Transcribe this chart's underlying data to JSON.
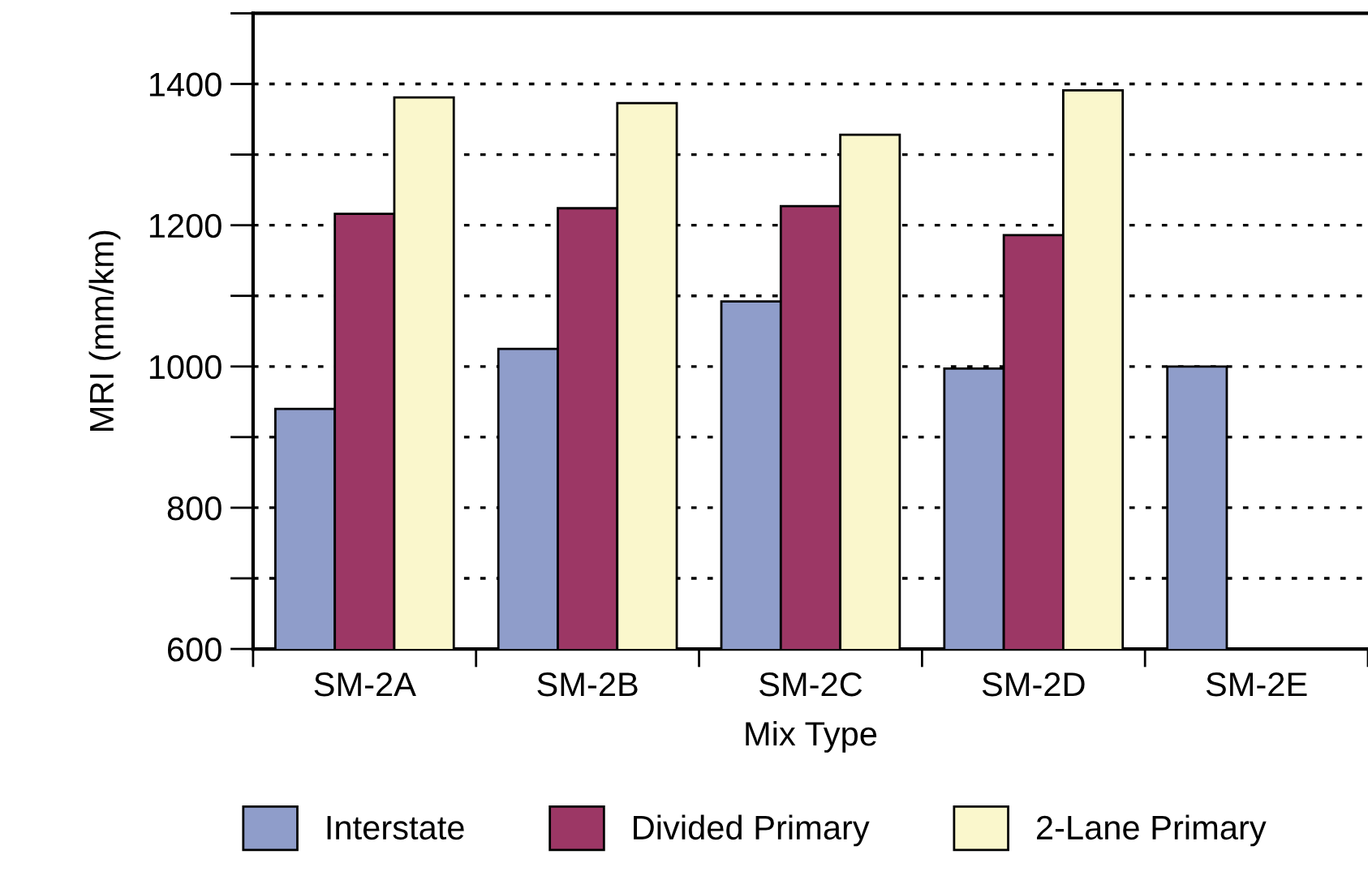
{
  "chart_data": {
    "type": "bar",
    "xlabel": "Mix Type",
    "ylabel": "MRI (mm/km)",
    "categories": [
      "SM-2A",
      "SM-2B",
      "SM-2C",
      "SM-2D",
      "SM-2E"
    ],
    "series": [
      {
        "name": "Interstate",
        "color": "#8f9dca",
        "values": [
          940,
          1025,
          1092,
          997,
          1000
        ]
      },
      {
        "name": "Divided Primary",
        "color": "#9c3765",
        "values": [
          1216,
          1224,
          1227,
          1186,
          null
        ]
      },
      {
        "name": "2-Lane Primary",
        "color": "#faf7cc",
        "values": [
          1381,
          1373,
          1328,
          1391,
          null
        ]
      }
    ],
    "ylim": [
      600,
      1500
    ],
    "yticks": [
      600,
      {
        "value": 700,
        "label": null
      },
      800,
      {
        "value": 900,
        "label": null
      },
      1000,
      {
        "value": 1100,
        "label": null
      },
      1200,
      {
        "value": 1300,
        "label": null
      },
      1400,
      {
        "value": 1500,
        "label": null
      }
    ],
    "grid": "y",
    "legend": "bottom"
  }
}
